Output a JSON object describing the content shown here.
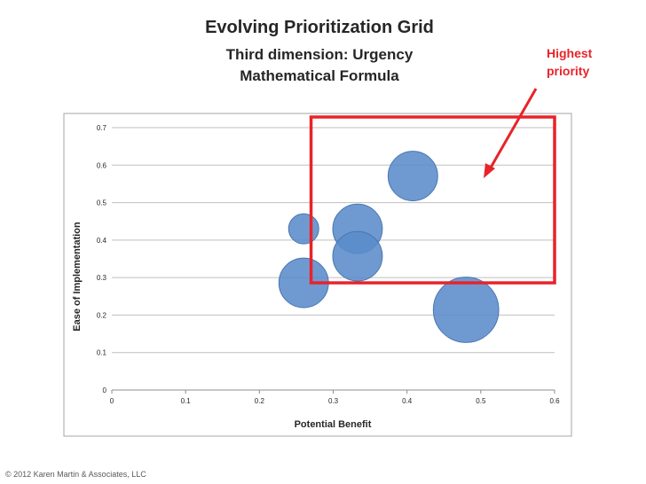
{
  "title": {
    "line1": "Evolving Prioritization Grid",
    "line2": "Third dimension: Urgency",
    "line3": "Mathematical Formula"
  },
  "annotation": {
    "text": "Highest priority",
    "color": "#e8232a"
  },
  "footer": "© 2012 Karen Martin & Associates, LLC",
  "colors": {
    "bubble": "#5b8ccb",
    "bubble_stroke": "#4a76b0",
    "highlight": "#e8232a",
    "grid": "#bfbfbf",
    "frame": "#a6a6a6"
  },
  "chart_data": {
    "type": "scatter",
    "subtype": "bubble",
    "xlabel": "Potential Benefit",
    "ylabel": "Ease of Implementation",
    "xlim": [
      0,
      0.6
    ],
    "ylim": [
      0,
      0.7
    ],
    "x_ticks": [
      "0",
      "0.1",
      "0.2",
      "0.3",
      "0.4",
      "0.5",
      "0.6"
    ],
    "y_ticks": [
      "0",
      "0.1",
      "0.2",
      "0.3",
      "0.4",
      "0.5",
      "0.6",
      "0.7"
    ],
    "grid": "horizontal",
    "points": [
      {
        "x": 0.26,
        "y": 0.43,
        "size": 1
      },
      {
        "x": 0.333,
        "y": 0.43,
        "size": 2.7
      },
      {
        "x": 0.333,
        "y": 0.357,
        "size": 2.7
      },
      {
        "x": 0.26,
        "y": 0.286,
        "size": 2.7
      },
      {
        "x": 0.408,
        "y": 0.571,
        "size": 2.7
      },
      {
        "x": 0.48,
        "y": 0.214,
        "size": 4.7
      }
    ],
    "highlight_region": {
      "x": [
        0.27,
        0.6
      ],
      "y": [
        0.286,
        0.7
      ]
    }
  }
}
